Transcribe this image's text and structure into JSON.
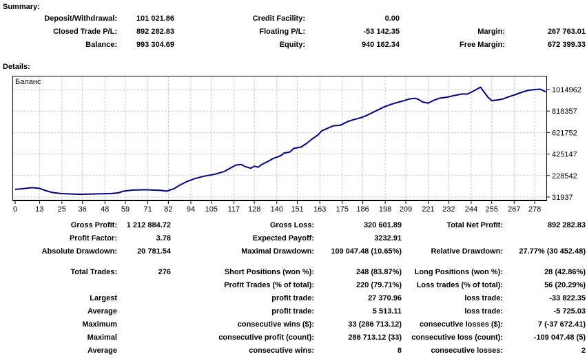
{
  "summary": {
    "title": "Summary:",
    "rows": [
      {
        "l1": "Deposit/Withdrawal:",
        "v1": "101 021.86",
        "l2": "Credit Facility:",
        "v2": "0.00",
        "l3": "",
        "v3": ""
      },
      {
        "l1": "Closed Trade P/L:",
        "v1": "892 282.83",
        "l2": "Floating P/L:",
        "v2": "-53 142.35",
        "l3": "Margin:",
        "v3": "267 763.01"
      },
      {
        "l1": "Balance:",
        "v1": "993 304.69",
        "l2": "Equity:",
        "v2": "940 162.34",
        "l3": "Free Margin:",
        "v3": "672 399.33"
      }
    ]
  },
  "details": {
    "title": "Details:",
    "stat_rows": [
      {
        "l1": "Gross Profit:",
        "v1": "1 212 884.72",
        "l2": "Gross Loss:",
        "v2": "320 601.89",
        "l3": "Total Net Profit:",
        "v3": "892 282.83"
      },
      {
        "l1": "Profit Factor:",
        "v1": "3.78",
        "l2": "Expected Payoff:",
        "v2": "3232.91",
        "l3": "",
        "v3": ""
      },
      {
        "l1": "Absolute Drawdown:",
        "v1": "20 781.54",
        "l2": "Maximal Drawdown:",
        "v2": "109 047.48 (10.65%)",
        "l3": "Relative Drawdown:",
        "v3": "27.77% (30 452.48)"
      }
    ],
    "trade_rows": [
      {
        "l1": "Total Trades:",
        "v1": "276",
        "l2": "Short Positions (won %):",
        "v2": "248 (83.87%)",
        "l3": "Long Positions (won %):",
        "v3": "28 (42.86%)"
      },
      {
        "l1": "",
        "v1": "",
        "l2": "Profit Trades (% of total):",
        "v2": "220 (79.71%)",
        "l3": "Loss trades (% of total):",
        "v3": "56 (20.29%)"
      },
      {
        "l1": "Largest",
        "v1": "",
        "l2": "profit trade:",
        "v2": "27 370.96",
        "l3": "loss trade:",
        "v3": "-33 822.35"
      },
      {
        "l1": "Average",
        "v1": "",
        "l2": "profit trade:",
        "v2": "5 513.11",
        "l3": "loss trade:",
        "v3": "-5 725.03"
      },
      {
        "l1": "Maximum",
        "v1": "",
        "l2": "consecutive wins ($):",
        "v2": "33 (286 713.12)",
        "l3": "consecutive losses ($):",
        "v3": "7 (-37 672.41)"
      },
      {
        "l1": "Maximal",
        "v1": "",
        "l2": "consecutive profit (count):",
        "v2": "286 713.12 (33)",
        "l3": "consecutive loss (count):",
        "v3": "-109 047.48 (5)"
      },
      {
        "l1": "Average",
        "v1": "",
        "l2": "consecutive wins:",
        "v2": "8",
        "l3": "consecutive losses:",
        "v3": "2"
      }
    ]
  },
  "chart_data": {
    "type": "line",
    "title": "Баланс",
    "xlabel": "",
    "ylabel": "",
    "legend_position": "top-left-label",
    "grid": "dashed",
    "line_color": "#000080",
    "grid_color": "#c8c8c8",
    "xlim": [
      0,
      284
    ],
    "ylim": [
      6600,
      1155000
    ],
    "x_ticks": [
      0,
      13,
      25,
      36,
      48,
      59,
      71,
      82,
      94,
      105,
      117,
      128,
      140,
      151,
      163,
      175,
      186,
      198,
      209,
      221,
      232,
      244,
      255,
      267,
      278
    ],
    "y_ticks": [
      1014962,
      818357,
      621752,
      425147,
      228542,
      31937
    ],
    "points": [
      [
        0,
        101022
      ],
      [
        4,
        108000
      ],
      [
        9,
        117500
      ],
      [
        13,
        111200
      ],
      [
        16,
        92200
      ],
      [
        20,
        73200
      ],
      [
        25,
        63600
      ],
      [
        34,
        57300
      ],
      [
        43,
        60500
      ],
      [
        51,
        63600
      ],
      [
        55,
        70000
      ],
      [
        58,
        85800
      ],
      [
        63,
        95400
      ],
      [
        70,
        98500
      ],
      [
        78,
        92200
      ],
      [
        81,
        85800
      ],
      [
        85,
        108000
      ],
      [
        88,
        139800
      ],
      [
        92,
        174600
      ],
      [
        96,
        200000
      ],
      [
        101,
        222200
      ],
      [
        107,
        241200
      ],
      [
        112,
        266600
      ],
      [
        118,
        323700
      ],
      [
        121,
        330000
      ],
      [
        123,
        311000
      ],
      [
        126,
        295100
      ],
      [
        128,
        314200
      ],
      [
        130,
        304600
      ],
      [
        132,
        330000
      ],
      [
        135,
        355400
      ],
      [
        138,
        383900
      ],
      [
        142,
        409300
      ],
      [
        144,
        434700
      ],
      [
        147,
        444200
      ],
      [
        149,
        475900
      ],
      [
        153,
        488600
      ],
      [
        156,
        523400
      ],
      [
        159,
        564700
      ],
      [
        162,
        599500
      ],
      [
        164,
        637600
      ],
      [
        167,
        659800
      ],
      [
        170,
        682000
      ],
      [
        174,
        688300
      ],
      [
        178,
        723200
      ],
      [
        181,
        739100
      ],
      [
        185,
        758100
      ],
      [
        188,
        777100
      ],
      [
        191,
        802500
      ],
      [
        194,
        827900
      ],
      [
        197,
        853200
      ],
      [
        201,
        878600
      ],
      [
        204,
        894400
      ],
      [
        208,
        913500
      ],
      [
        211,
        929300
      ],
      [
        214,
        935700
      ],
      [
        216,
        923000
      ],
      [
        218,
        900800
      ],
      [
        221,
        891300
      ],
      [
        224,
        916600
      ],
      [
        227,
        935700
      ],
      [
        231,
        945200
      ],
      [
        235,
        961000
      ],
      [
        239,
        973700
      ],
      [
        242,
        973700
      ],
      [
        245,
        999100
      ],
      [
        248,
        1027600
      ],
      [
        249,
        1037100
      ],
      [
        251,
        989600
      ],
      [
        253,
        945200
      ],
      [
        255,
        913500
      ],
      [
        258,
        919800
      ],
      [
        261,
        929300
      ],
      [
        264,
        948400
      ],
      [
        268,
        970600
      ],
      [
        271,
        989600
      ],
      [
        274,
        1005400
      ],
      [
        278,
        1015000
      ],
      [
        281,
        1018100
      ],
      [
        284,
        993305
      ]
    ]
  }
}
